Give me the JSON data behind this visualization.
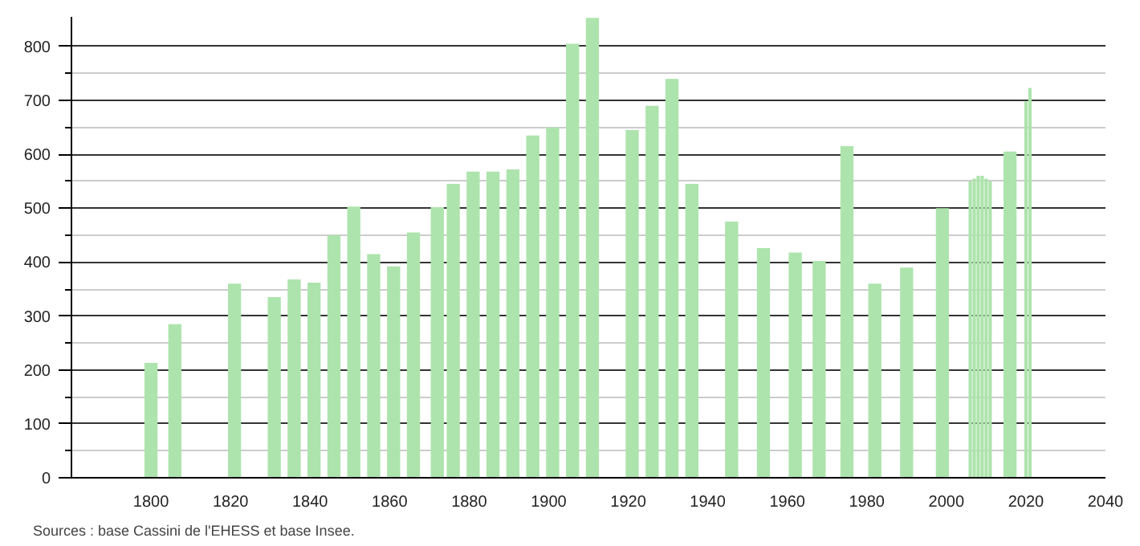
{
  "chart_data": {
    "type": "bar",
    "x": [
      1800,
      1806,
      1821,
      1831,
      1836,
      1841,
      1846,
      1851,
      1856,
      1861,
      1866,
      1872,
      1876,
      1881,
      1886,
      1891,
      1896,
      1901,
      1906,
      1911,
      1921,
      1926,
      1931,
      1936,
      1946,
      1954,
      1962,
      1968,
      1975,
      1982,
      1990,
      1999,
      2006,
      2007,
      2008,
      2009,
      2010,
      2011,
      2016,
      2020,
      2021
    ],
    "values": [
      213,
      285,
      360,
      335,
      368,
      362,
      450,
      503,
      415,
      392,
      455,
      502,
      545,
      568,
      568,
      572,
      635,
      650,
      805,
      853,
      645,
      690,
      740,
      545,
      475,
      426,
      418,
      402,
      615,
      360,
      390,
      500,
      550,
      555,
      560,
      560,
      555,
      550,
      605,
      698,
      723
    ],
    "color": "#ade4ad",
    "xlim": [
      1780,
      2040
    ],
    "xticks": [
      1800,
      1820,
      1840,
      1860,
      1880,
      1900,
      1920,
      1940,
      1960,
      1980,
      2000,
      2020,
      2040
    ],
    "ylim": [
      0,
      855
    ],
    "yticks": [
      0,
      100,
      200,
      300,
      400,
      500,
      600,
      700,
      800
    ],
    "grid": "y",
    "annotations": [
      "Sources : base Cassini de l'EHESS et base Insee."
    ]
  }
}
